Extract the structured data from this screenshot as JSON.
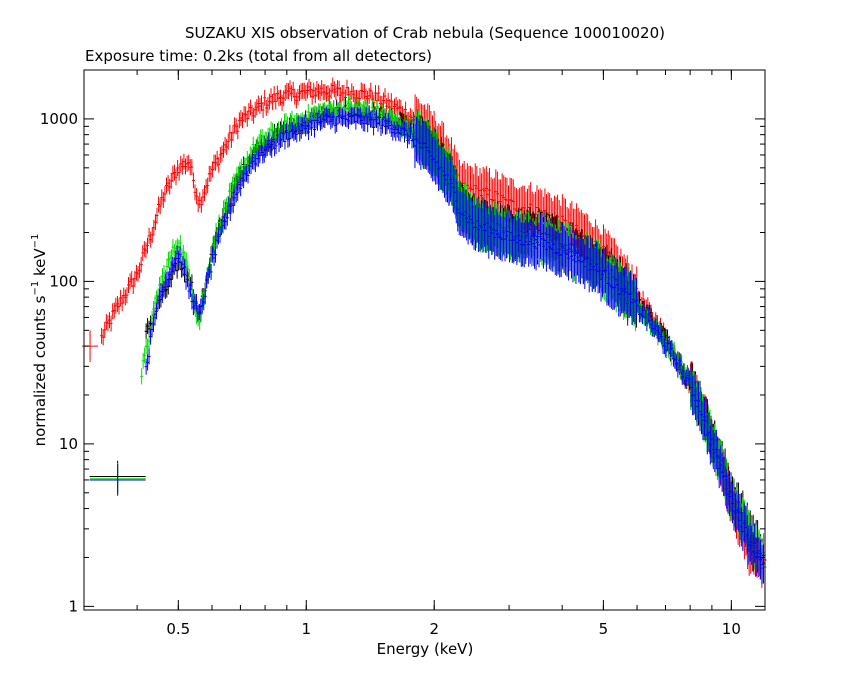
{
  "chart_data": {
    "type": "scatter",
    "title": "SUZAKU XIS observation of Crab nebula (Sequence 100010020)",
    "subtitle": "Exposure time: 0.2ks (total from all detectors)",
    "xlabel": "Energy (keV)",
    "ylabel": "normalized counts s",
    "ylabel_parts": [
      "normalized counts s",
      "−1",
      " keV",
      "−1"
    ],
    "xscale": "log",
    "yscale": "log",
    "xlim": [
      0.3,
      12
    ],
    "ylim": [
      0.95,
      2000
    ],
    "xticks": [
      0.5,
      1,
      2,
      5,
      10
    ],
    "xtick_labels": [
      "0.5",
      "1",
      "2",
      "5",
      "10"
    ],
    "yticks": [
      1,
      10,
      100,
      1000
    ],
    "ytick_labels": [
      "1",
      "10",
      "100",
      "1000"
    ],
    "grid": false,
    "error_bars": true,
    "series": [
      {
        "color": "#ff0000",
        "x": [
          0.31,
          0.33,
          0.36,
          0.4,
          0.43,
          0.46,
          0.5,
          0.53,
          0.56,
          0.6,
          0.65,
          0.7,
          0.75,
          0.8,
          0.85,
          0.9,
          1.0,
          1.1,
          1.2,
          1.3,
          1.4,
          1.5,
          1.6,
          1.7,
          1.8,
          1.9,
          2.0,
          2.1,
          2.2,
          2.3,
          2.5,
          2.8,
          3.0,
          3.5,
          4.0,
          4.5,
          5.0,
          5.5,
          6.0,
          6.5,
          7.0,
          7.5,
          8.0,
          8.5,
          9.0,
          9.5,
          10.0,
          11.0,
          12.0
        ],
        "y": [
          40,
          45,
          70,
          110,
          190,
          330,
          500,
          550,
          300,
          480,
          700,
          980,
          1100,
          1250,
          1350,
          1400,
          1450,
          1500,
          1450,
          1450,
          1400,
          1300,
          1200,
          1100,
          1000,
          880,
          760,
          640,
          520,
          380,
          360,
          330,
          300,
          270,
          230,
          190,
          150,
          110,
          82,
          60,
          45,
          32,
          24,
          17,
          11,
          7,
          4.5,
          2.2,
          1.8
        ]
      },
      {
        "color": "#000000",
        "x": [
          0.36,
          0.42,
          0.45,
          0.48,
          0.5,
          0.53,
          0.56,
          0.6,
          0.65,
          0.7,
          0.75,
          0.8,
          0.9,
          1.0,
          1.1,
          1.2,
          1.3,
          1.4,
          1.5,
          1.6,
          1.7,
          1.8,
          1.9,
          2.0,
          2.1,
          2.2,
          2.3,
          2.5,
          2.8,
          3.0,
          3.5,
          4.0,
          4.5,
          5.0,
          5.5,
          6.0,
          6.5,
          7.0,
          7.5,
          8.0,
          8.5,
          9.0,
          9.5,
          10.0,
          11.0,
          12.0
        ],
        "y": [
          6.3,
          47,
          75,
          100,
          130,
          110,
          60,
          150,
          280,
          450,
          600,
          700,
          850,
          950,
          1050,
          1100,
          1100,
          1050,
          1000,
          950,
          880,
          800,
          700,
          600,
          500,
          400,
          300,
          230,
          210,
          200,
          190,
          170,
          145,
          120,
          95,
          75,
          58,
          44,
          33,
          24,
          17,
          11,
          7.5,
          5,
          3,
          2
        ]
      },
      {
        "color": "#00dd00",
        "x": [
          0.36,
          0.41,
          0.45,
          0.48,
          0.5,
          0.53,
          0.56,
          0.6,
          0.65,
          0.7,
          0.75,
          0.8,
          0.9,
          1.0,
          1.1,
          1.2,
          1.3,
          1.4,
          1.5,
          1.6,
          1.7,
          1.8,
          1.9,
          2.0,
          2.1,
          2.2,
          2.3,
          2.5,
          2.8,
          3.0,
          3.5,
          4.0,
          4.5,
          5.0,
          5.5,
          6.0,
          6.5,
          7.0,
          7.5,
          8.0,
          8.5,
          9.0,
          9.5,
          10.0,
          11.0,
          12.0
        ],
        "y": [
          6.1,
          27,
          90,
          140,
          180,
          110,
          55,
          160,
          300,
          470,
          640,
          750,
          900,
          1000,
          1100,
          1150,
          1150,
          1100,
          1050,
          980,
          900,
          810,
          720,
          620,
          520,
          420,
          310,
          230,
          205,
          190,
          180,
          160,
          140,
          115,
          90,
          72,
          55,
          42,
          32,
          23,
          16,
          10.5,
          7,
          4.8,
          2.8,
          1.9
        ]
      },
      {
        "color": "#0000ff",
        "x": [
          0.36,
          0.42,
          0.45,
          0.48,
          0.5,
          0.53,
          0.56,
          0.6,
          0.65,
          0.7,
          0.75,
          0.8,
          0.9,
          1.0,
          1.1,
          1.2,
          1.3,
          1.4,
          1.5,
          1.6,
          1.7,
          1.8,
          1.9,
          2.0,
          2.1,
          2.2,
          2.3,
          2.5,
          2.8,
          3.0,
          3.5,
          4.0,
          4.5,
          5.0,
          5.5,
          6.0,
          6.5,
          7.0,
          7.5,
          8.0,
          8.5,
          9.0,
          9.5,
          10.0,
          11.0,
          12.0
        ],
        "y": [
          6.0,
          30,
          80,
          120,
          150,
          90,
          60,
          130,
          250,
          400,
          550,
          650,
          800,
          900,
          980,
          1000,
          1000,
          980,
          950,
          900,
          820,
          740,
          650,
          560,
          470,
          380,
          280,
          220,
          200,
          185,
          175,
          155,
          135,
          110,
          88,
          70,
          54,
          41,
          31,
          23,
          16,
          10,
          6.8,
          4.6,
          2.6,
          1.8
        ]
      }
    ]
  }
}
